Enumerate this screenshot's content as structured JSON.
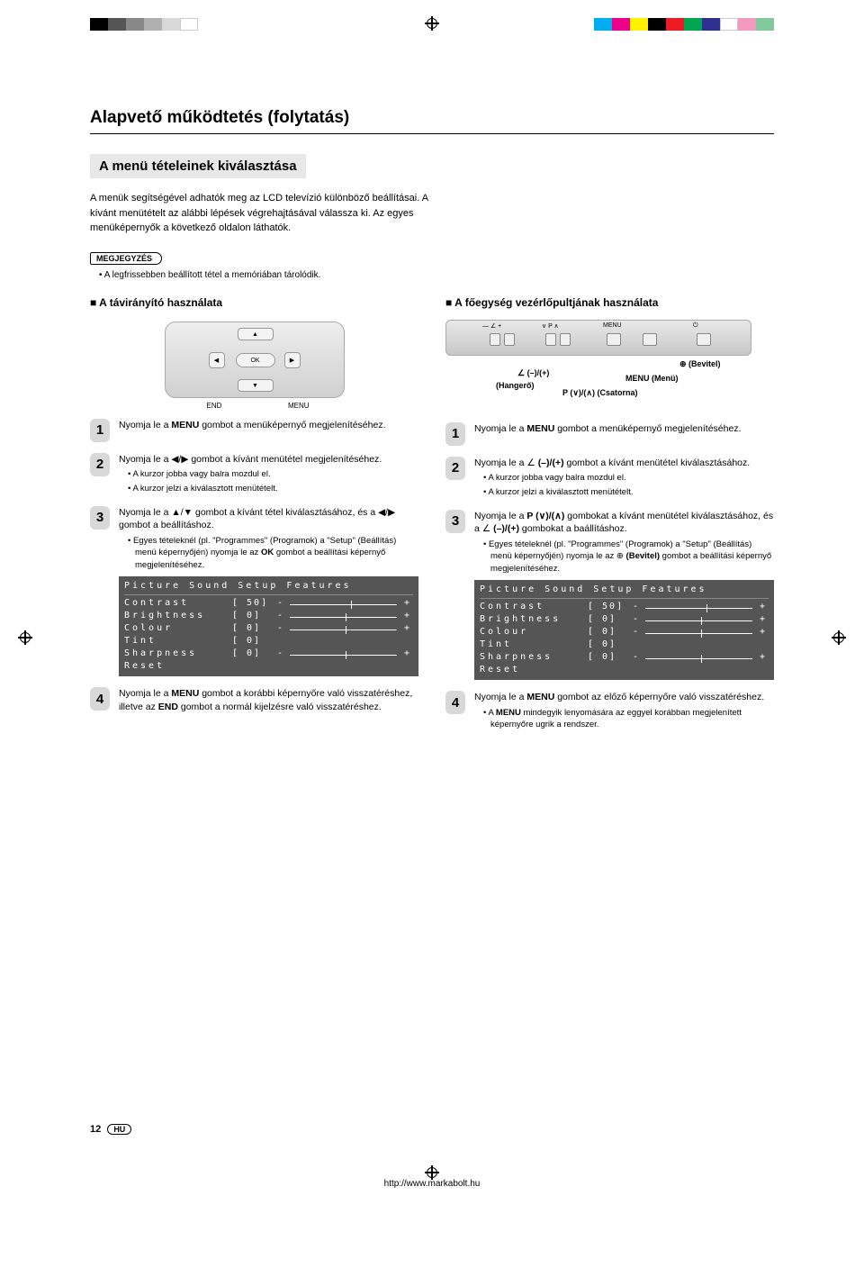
{
  "print_marks": {
    "left_swatches": [
      "#000000",
      "#555555",
      "#888888",
      "#b0b0b0",
      "#d8d8d8",
      "#ffffff"
    ],
    "right_swatches": [
      "#00aeef",
      "#ec008c",
      "#fff200",
      "#000000",
      "#ed1c24",
      "#00a651",
      "#2e3192",
      "#ffffff",
      "#f49ac1",
      "#82ca9c"
    ]
  },
  "title": "Alapvető működtetés (folytatás)",
  "subtitle": "A menü tételeinek kiválasztása",
  "intro": "A menük segítségével adhatók meg az LCD televízió különböző beállításai. A kívánt menütételt az alábbi lépések végrehajtásával válassza ki. Az egyes menüképernyők a következő oldalon láthatók.",
  "note_label": "MEGJEGYZÉS",
  "note_text": "• A legfrissebben beállított tétel a memóriában tárolódik.",
  "left": {
    "heading": "A távirányító használata",
    "remote": {
      "ok": "OK",
      "end": "END",
      "menu": "MENU"
    },
    "steps": [
      {
        "n": "1",
        "text": "Nyomja le a <b>MENU</b> gombot a menüképernyő megjelenítéséhez."
      },
      {
        "n": "2",
        "text": "Nyomja le a ◀/▶ gombot a kívánt menütétel megjelenítéséhez.",
        "subs": [
          "• A kurzor jobba vagy balra mozdul el.",
          "• A kurzor jelzi a kiválasztott menütételt."
        ]
      },
      {
        "n": "3",
        "text": "Nyomja le a ▲/▼ gombot a kívánt tétel kiválasztásához, és a ◀/▶ gombot a beállításhoz.",
        "subs": [
          "• Egyes tételeknél (pl. \"Programmes\" (Programok) a \"Setup\" (Beállítás) menü képernyőjén) nyomja le az <b>OK</b> gombot a beállítási képernyő megjelenítéséhez."
        ],
        "osd": true
      },
      {
        "n": "4",
        "text": "Nyomja le a <b>MENU</b> gombot a korábbi képernyőre való visszatéréshez, illetve az <b>END</b> gombot a normál kijelzésre való visszatéréshez."
      }
    ]
  },
  "right": {
    "heading": "A főegység vezérlőpultjának használata",
    "panel_labels": {
      "vol": "— ∠ +",
      "prog": "∨ P ∧",
      "menu": "MENU",
      "enter": "⊕"
    },
    "callouts": {
      "vol": "∠ (–)/(+)",
      "vol2": "(Hangerő)",
      "prog": "P (∨)/(∧) (Csatorna)",
      "menu": "MENU (Menü)",
      "enter": "⊕ (Bevitel)"
    },
    "steps": [
      {
        "n": "1",
        "text": "Nyomja le a <b>MENU</b> gombot a menüképernyő megjelenítéséhez."
      },
      {
        "n": "2",
        "text": "Nyomja le a ∠ <b>(–)/(+)</b> gombot a kívánt menütétel kiválasztásához.",
        "subs": [
          "• A kurzor jobba vagy balra mozdul el.",
          "• A kurzor jelzi a kiválasztott menütételt."
        ]
      },
      {
        "n": "3",
        "text": "Nyomja le a <b>P (∨)/(∧)</b> gombokat a kívánt menütétel kiválasztásához, és a ∠ <b>(–)/(+)</b> gombokat a baállításhoz.",
        "subs": [
          "• Egyes tételeknél (pl. \"Programmes\" (Programok) a \"Setup\" (Beállítás) menü képernyőjén) nyomja le az ⊕ <b>(Bevitel)</b> gombot a beállítási képernyő megjelenítéséhez."
        ],
        "osd": true
      },
      {
        "n": "4",
        "text": "Nyomja le a <b>MENU</b> gombot az előző képernyőre való visszatéréshez.",
        "subs": [
          "• A <b>MENU</b> mindegyik lenyomására az eggyel korábban megjelenített képernyőre ugrik a rendszer."
        ]
      }
    ]
  },
  "osd": {
    "tabs": "Picture  Sound  Setup  Features",
    "rows": [
      {
        "label": "Contrast",
        "val": "[ 50]",
        "tickLeft": "54%"
      },
      {
        "label": "Brightness",
        "val": "[  0]",
        "tickLeft": "50%"
      },
      {
        "label": "Colour",
        "val": "[  0]",
        "tickLeft": "50%"
      },
      {
        "label": "Tint",
        "val": "[  0]",
        "noslider": true
      },
      {
        "label": "Sharpness",
        "val": "[  0]",
        "tickLeft": "50%"
      },
      {
        "label": "Reset",
        "val": "",
        "noslider": true
      }
    ]
  },
  "footer": {
    "page": "12",
    "lang": "HU",
    "url": "http://www.markabolt.hu"
  }
}
